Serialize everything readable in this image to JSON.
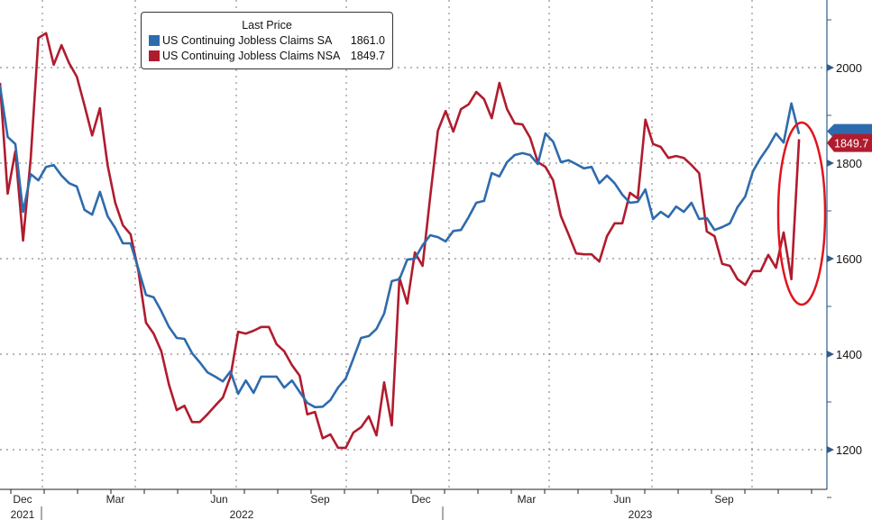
{
  "chart_data": {
    "type": "line",
    "legend_title": "Last Price",
    "legend_position": "top-left",
    "frequency": "weekly",
    "x_tick_labels": [
      "Dec",
      "Mar",
      "Jun",
      "Sep",
      "Dec",
      "Mar",
      "Jun",
      "Sep"
    ],
    "x_year_labels": [
      "2021",
      "2022",
      "2023"
    ],
    "y_ticks": [
      "1200",
      "1400",
      "1600",
      "1800",
      "2000"
    ],
    "ylim": [
      1120,
      2160
    ],
    "grid": true,
    "series": [
      {
        "name": "US Continuing Jobless Claims SA",
        "last": "1861.0",
        "color": "#2e6bad",
        "values": [
          1962,
          1855,
          1840,
          1698,
          1777,
          1764,
          1792,
          1796,
          1774,
          1758,
          1751,
          1702,
          1692,
          1740,
          1689,
          1664,
          1632,
          1632,
          1579,
          1524,
          1519,
          1490,
          1457,
          1434,
          1432,
          1402,
          1383,
          1362,
          1353,
          1343,
          1364,
          1317,
          1345,
          1319,
          1353,
          1353,
          1353,
          1330,
          1345,
          1321,
          1298,
          1289,
          1290,
          1304,
          1330,
          1349,
          1391,
          1434,
          1438,
          1453,
          1485,
          1553,
          1557,
          1598,
          1600,
          1628,
          1649,
          1645,
          1636,
          1658,
          1660,
          1687,
          1717,
          1721,
          1779,
          1772,
          1802,
          1817,
          1821,
          1817,
          1798,
          1862,
          1845,
          1802,
          1806,
          1798,
          1789,
          1792,
          1758,
          1774,
          1758,
          1734,
          1717,
          1719,
          1745,
          1683,
          1698,
          1687,
          1709,
          1698,
          1717,
          1683,
          1685,
          1660,
          1666,
          1674,
          1708,
          1730,
          1783,
          1811,
          1834,
          1862,
          1843,
          1925,
          1861
        ]
      },
      {
        "name": "US Continuing Jobless Claims NSA",
        "last": "1849.7",
        "color": "#b01c2e",
        "values": [
          1968,
          1736,
          1825,
          1638,
          1811,
          2062,
          2072,
          2006,
          2047,
          2009,
          1981,
          1921,
          1858,
          1915,
          1796,
          1717,
          1670,
          1651,
          1575,
          1466,
          1443,
          1406,
          1336,
          1283,
          1292,
          1258,
          1258,
          1274,
          1292,
          1309,
          1353,
          1447,
          1443,
          1449,
          1457,
          1457,
          1421,
          1406,
          1377,
          1355,
          1274,
          1279,
          1224,
          1232,
          1204,
          1204,
          1236,
          1247,
          1270,
          1230,
          1341,
          1251,
          1560,
          1506,
          1613,
          1585,
          1730,
          1868,
          1909,
          1866,
          1913,
          1923,
          1949,
          1934,
          1894,
          1968,
          1913,
          1883,
          1881,
          1853,
          1802,
          1792,
          1764,
          1689,
          1651,
          1611,
          1609,
          1609,
          1594,
          1647,
          1674,
          1674,
          1738,
          1726,
          1891,
          1840,
          1834,
          1811,
          1815,
          1811,
          1796,
          1779,
          1657,
          1647,
          1589,
          1585,
          1557,
          1545,
          1574,
          1574,
          1608,
          1581,
          1655,
          1557,
          1850
        ]
      }
    ]
  }
}
